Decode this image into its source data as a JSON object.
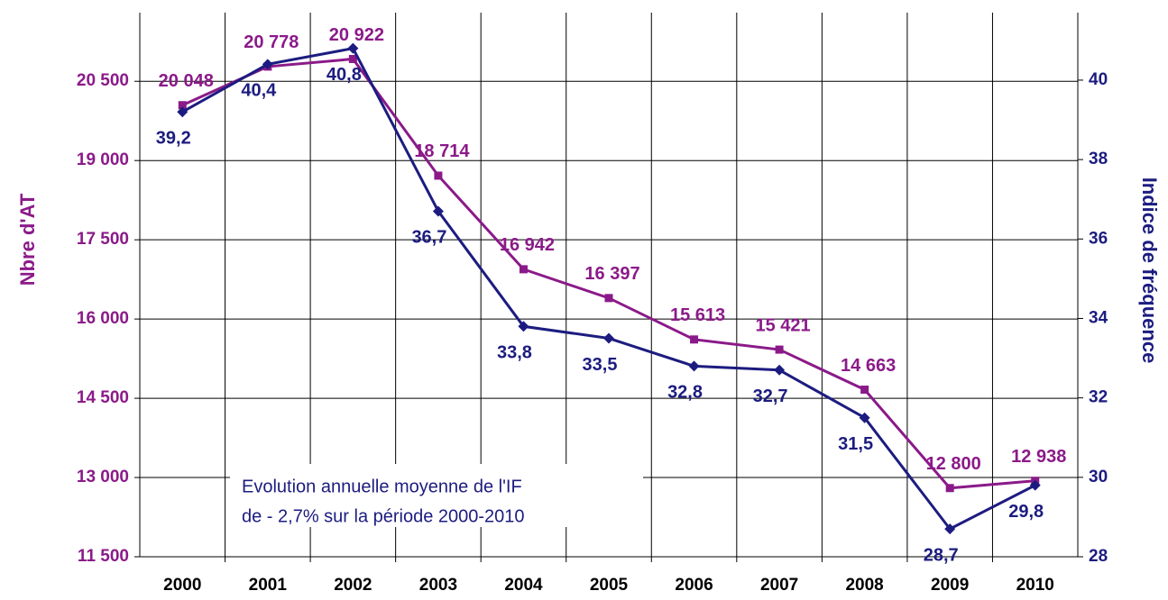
{
  "chart_data": {
    "type": "line",
    "categories": [
      "2000",
      "2001",
      "2002",
      "2003",
      "2004",
      "2005",
      "2006",
      "2007",
      "2008",
      "2009",
      "2010"
    ],
    "ylabel": "Nbre d'AT",
    "y2label": "Indice de fréquence",
    "annotation": [
      "Evolution annuelle moyenne de l'IF",
      "de - 2,7% sur la période 2000-2010"
    ],
    "ylim": [
      11500,
      21800
    ],
    "yticks": [
      {
        "value": 11500,
        "label": "11 500"
      },
      {
        "value": 13000,
        "label": "13 000"
      },
      {
        "value": 14500,
        "label": "14 500"
      },
      {
        "value": 16000,
        "label": "16 000"
      },
      {
        "value": 17500,
        "label": "17 500"
      },
      {
        "value": 19000,
        "label": "19 000"
      },
      {
        "value": 20500,
        "label": "20 500"
      }
    ],
    "y2lim": [
      28,
      41.7
    ],
    "y2ticks": [
      28,
      30,
      32,
      34,
      36,
      38,
      40
    ],
    "grid": true,
    "series": [
      {
        "color": "#8b1a89",
        "marker": "square",
        "values": [
          20048,
          20778,
          20922,
          18714,
          16942,
          16397,
          15613,
          15421,
          14663,
          12800,
          12938
        ],
        "value_labels": [
          "20 048",
          "20 778",
          "20 922",
          "18 714",
          "16 942",
          "16 397",
          "15 613",
          "15 421",
          "14 663",
          "12 800",
          "12 938"
        ]
      },
      {
        "color": "#1c1c80",
        "marker": "diamond",
        "axis": "y2",
        "values": [
          39.2,
          40.4,
          40.8,
          36.7,
          33.8,
          33.5,
          32.8,
          32.7,
          31.5,
          28.7,
          29.8
        ],
        "value_labels": [
          "39,2",
          "40,4",
          "40,8",
          "36,7",
          "33,8",
          "33,5",
          "32,8",
          "32,7",
          "31,5",
          "28,7",
          "29,8"
        ]
      }
    ]
  }
}
